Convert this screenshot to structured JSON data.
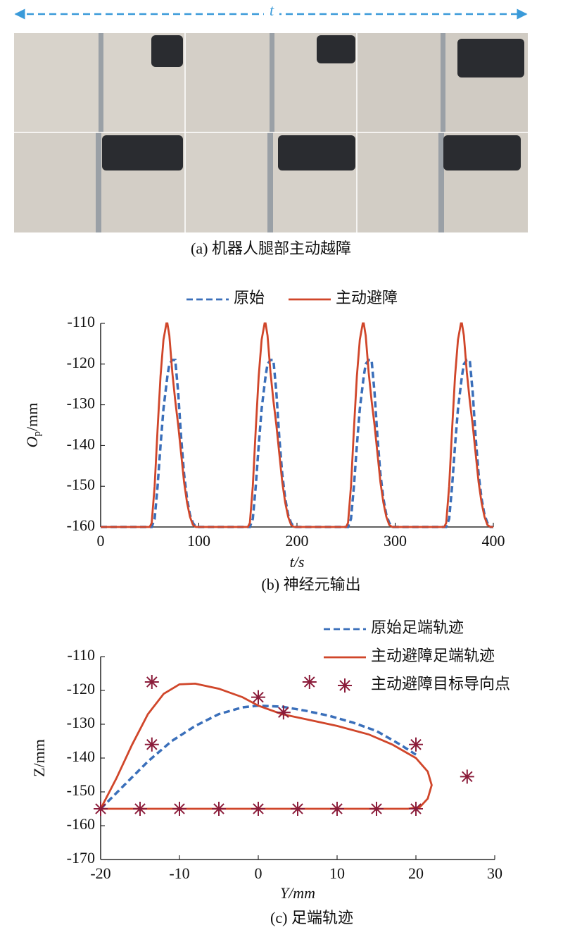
{
  "panel_a": {
    "time_label": "t",
    "caption": "(a) 机器人腿部主动越障"
  },
  "chart_data": [
    {
      "type": "line",
      "caption": "(b) 神经元输出",
      "x_label": "t/s",
      "y_label": [
        "O",
        "p",
        "/mm"
      ],
      "xlim": [
        0,
        400
      ],
      "xticks": [
        0,
        100,
        200,
        300,
        400
      ],
      "ylim": [
        -160,
        -110
      ],
      "yticks": [
        -110,
        -120,
        -130,
        -140,
        -150,
        -160
      ],
      "x": [
        0,
        50,
        52,
        55,
        58,
        61,
        64,
        67,
        68,
        70,
        73,
        76,
        79,
        82,
        85,
        88,
        91,
        94,
        97,
        100,
        150,
        152,
        155,
        158,
        161,
        164,
        167,
        168,
        170,
        173,
        176,
        179,
        182,
        185,
        188,
        191,
        194,
        197,
        200,
        250,
        252,
        255,
        258,
        261,
        264,
        267,
        268,
        270,
        273,
        276,
        279,
        282,
        285,
        288,
        291,
        294,
        297,
        300,
        350,
        352,
        355,
        358,
        361,
        364,
        367,
        368,
        370,
        373,
        376,
        379,
        382,
        385,
        388,
        391,
        394,
        397,
        400
      ],
      "series": [
        {
          "name": "原始",
          "color": "#3a6fba",
          "dash": true,
          "values": [
            -160,
            -160,
            -160,
            -158,
            -150,
            -140,
            -131,
            -125,
            -123,
            -120,
            -119,
            -119,
            -127,
            -138,
            -147,
            -153,
            -157,
            -159,
            -160,
            -160,
            -160,
            -160,
            -158,
            -150,
            -140,
            -131,
            -125,
            -123,
            -120,
            -119,
            -119,
            -127,
            -138,
            -147,
            -153,
            -157,
            -159,
            -160,
            -160,
            -160,
            -160,
            -158,
            -150,
            -140,
            -131,
            -125,
            -123,
            -120,
            -119,
            -119,
            -127,
            -138,
            -147,
            -153,
            -157,
            -159,
            -160,
            -160,
            -160,
            -160,
            -158,
            -150,
            -140,
            -131,
            -125,
            -123,
            -120,
            -119,
            -119,
            -127,
            -138,
            -147,
            -153,
            -157,
            -159,
            -160,
            -160
          ]
        },
        {
          "name": "主动避障",
          "color": "#d0462a",
          "dash": false,
          "values": [
            -160,
            -160,
            -159,
            -150,
            -136,
            -123,
            -114,
            -110,
            -110,
            -113,
            -122,
            -129,
            -135,
            -142,
            -149,
            -154,
            -157.5,
            -159.5,
            -160,
            -160,
            -160,
            -159,
            -150,
            -136,
            -123,
            -114,
            -110,
            -110,
            -113,
            -122,
            -129,
            -135,
            -142,
            -149,
            -154,
            -157.5,
            -159.5,
            -160,
            -160,
            -160,
            -159,
            -150,
            -136,
            -123,
            -114,
            -110,
            -110,
            -113,
            -122,
            -129,
            -135,
            -142,
            -149,
            -154,
            -157.5,
            -159.5,
            -160,
            -160,
            -160,
            -159,
            -150,
            -136,
            -123,
            -114,
            -110,
            -110,
            -113,
            -122,
            -129,
            -135,
            -142,
            -149,
            -154,
            -157.5,
            -159.5,
            -160,
            -160
          ]
        }
      ]
    },
    {
      "type": "trajectory",
      "caption": "(c) 足端轨迹",
      "x_label": "Y/mm",
      "y_label": [
        "Z/mm"
      ],
      "xlim": [
        -20,
        30
      ],
      "xticks": [
        -20,
        -10,
        0,
        10,
        20,
        30
      ],
      "ylim": [
        -170,
        -110
      ],
      "yticks": [
        -110,
        -120,
        -130,
        -140,
        -150,
        -160,
        -170
      ],
      "series": [
        {
          "name": "原始足端轨迹",
          "color": "#3a6fba",
          "mode": "line",
          "dash": true,
          "x": [
            -20,
            -17,
            -14,
            -11,
            -8,
            -5,
            -2,
            0,
            3,
            6,
            9,
            12,
            15,
            18,
            20
          ],
          "values": [
            -155,
            -148,
            -141,
            -135,
            -130.5,
            -127,
            -125,
            -124.5,
            -124.8,
            -126,
            -127.5,
            -129.5,
            -132,
            -136,
            -139
          ]
        },
        {
          "name": "主动避障足端轨迹",
          "color": "#d0462a",
          "mode": "line",
          "dash": false,
          "x": [
            -20,
            -18,
            -16,
            -14,
            -12,
            -10,
            -8,
            -5,
            -2,
            0,
            3,
            6,
            10,
            14,
            17,
            20,
            21.5,
            22,
            21.5,
            20.5,
            19,
            -20
          ],
          "values": [
            -155,
            -146,
            -136,
            -127,
            -121,
            -118.2,
            -118,
            -119.5,
            -122,
            -124.5,
            -127,
            -128.5,
            -130.5,
            -133,
            -136,
            -140,
            -144,
            -148,
            -152,
            -154.5,
            -155,
            -155
          ]
        },
        {
          "name": "主动避障目标导向点",
          "color": "#8b1c3a",
          "mode": "scatter",
          "dash": false,
          "x": [
            -13.5,
            -13.5,
            0,
            3.2,
            6.5,
            20,
            26.5,
            -20,
            -15,
            -10,
            -5,
            0,
            5,
            10,
            15,
            20
          ],
          "values": [
            -117.5,
            -136,
            -122,
            -126.5,
            -117.5,
            -136,
            -145.5,
            -155,
            -155,
            -155,
            -155,
            -155,
            -155,
            -155,
            -155,
            -155
          ]
        }
      ]
    }
  ]
}
